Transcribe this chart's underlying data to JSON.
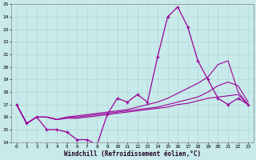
{
  "xlabel": "Windchill (Refroidissement éolien,°C)",
  "background_color": "#c8eaea",
  "grid_color": "#b0d8d8",
  "line_color": "#990099",
  "xlim": [
    -0.5,
    23.5
  ],
  "ylim": [
    14,
    25
  ],
  "xticks": [
    0,
    1,
    2,
    3,
    4,
    5,
    6,
    7,
    8,
    9,
    10,
    11,
    12,
    13,
    14,
    15,
    16,
    17,
    18,
    19,
    20,
    21,
    22,
    23
  ],
  "yticks": [
    14,
    15,
    16,
    17,
    18,
    19,
    20,
    21,
    22,
    23,
    24,
    25
  ],
  "hours": [
    0,
    1,
    2,
    3,
    4,
    5,
    6,
    7,
    8,
    9,
    10,
    11,
    12,
    13,
    14,
    15,
    16,
    17,
    18,
    19,
    20,
    21,
    22,
    23
  ],
  "temp_main": [
    17.0,
    15.5,
    16.0,
    15.0,
    15.0,
    14.8,
    14.2,
    14.2,
    13.8,
    16.2,
    17.5,
    17.2,
    17.8,
    17.2,
    20.8,
    24.0,
    24.8,
    23.2,
    20.5,
    19.0,
    17.5,
    17.0,
    17.5,
    17.0
  ],
  "line1": [
    17.0,
    15.5,
    16.0,
    16.0,
    15.8,
    15.9,
    15.9,
    16.0,
    16.1,
    16.2,
    16.3,
    16.4,
    16.5,
    16.6,
    16.7,
    16.8,
    17.0,
    17.1,
    17.3,
    17.5,
    17.6,
    17.7,
    17.8,
    17.0
  ],
  "line2": [
    17.0,
    15.5,
    16.0,
    16.0,
    15.8,
    16.0,
    16.0,
    16.1,
    16.2,
    16.3,
    16.4,
    16.5,
    16.6,
    16.7,
    16.8,
    17.0,
    17.2,
    17.4,
    17.6,
    18.0,
    18.5,
    18.8,
    18.5,
    17.2
  ],
  "line3": [
    17.0,
    15.5,
    16.0,
    16.0,
    15.8,
    16.0,
    16.1,
    16.2,
    16.3,
    16.4,
    16.5,
    16.6,
    16.8,
    17.0,
    17.2,
    17.5,
    17.9,
    18.3,
    18.7,
    19.2,
    20.2,
    20.5,
    18.0,
    17.0
  ]
}
